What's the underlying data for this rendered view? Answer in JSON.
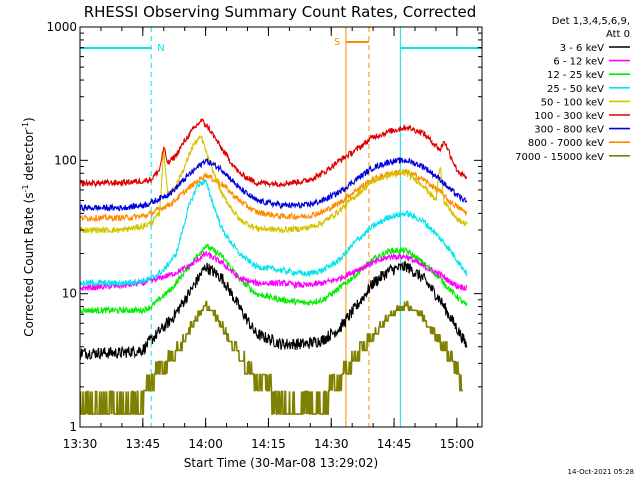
{
  "chart_data": {
    "type": "line",
    "title": "RHESSI Observing Summary Count Rates, Corrected",
    "xlabel": "Start Time (30-Mar-08 13:29:02)",
    "ylabel_main": "Corrected Count Rate (s",
    "ylabel_sup1": "-1",
    "ylabel_mid": " detector",
    "ylabel_sup2": "-1",
    "ylabel_end": ")",
    "x_unit": "minutes after 13:30",
    "xlim": [
      0,
      96
    ],
    "ylim": [
      1,
      1000
    ],
    "y_scale": "log",
    "x_ticks": [
      {
        "x": 0,
        "label": "13:30"
      },
      {
        "x": 15,
        "label": "13:45"
      },
      {
        "x": 30,
        "label": "14:00"
      },
      {
        "x": 45,
        "label": "14:15"
      },
      {
        "x": 60,
        "label": "14:30"
      },
      {
        "x": 75,
        "label": "14:45"
      },
      {
        "x": 90,
        "label": "15:00"
      }
    ],
    "y_ticks": [
      {
        "y": 1,
        "label": "1"
      },
      {
        "y": 10,
        "label": "10"
      },
      {
        "y": 100,
        "label": "100"
      },
      {
        "y": 1000,
        "label": "1000"
      }
    ],
    "legend": {
      "position": "right",
      "header_line1": "Det 1,3,4,5,6,9,",
      "header_line2": "Att 0"
    },
    "flags": {
      "night_label": "N",
      "saa_label": "S",
      "night_intervals": [
        [
          0,
          17
        ],
        [
          76.5,
          96
        ]
      ],
      "saa_interval": [
        63.5,
        69
      ],
      "night_color": "#00e5ee",
      "saa_color": "#ff8c00"
    },
    "footer_date": "14-Oct-2021 05:28",
    "series": [
      {
        "name": "3 - 6 keV",
        "color": "#000000",
        "x": [
          0,
          10,
          15,
          17,
          22,
          26,
          30,
          34,
          38,
          42,
          48,
          54,
          58,
          62,
          66,
          70,
          74,
          78,
          82,
          86,
          88,
          90,
          92.5
        ],
        "y": [
          3.6,
          3.6,
          3.8,
          4.5,
          6.5,
          10,
          16,
          13,
          8,
          5,
          4.2,
          4.2,
          4.5,
          5.5,
          8,
          12,
          15,
          16,
          13,
          9,
          7,
          5.5,
          4
        ]
      },
      {
        "name": "6 - 12 keV",
        "color": "#ff00ff",
        "x": [
          0,
          10,
          15,
          17,
          22,
          26,
          30,
          34,
          38,
          42,
          48,
          54,
          58,
          62,
          66,
          70,
          74,
          78,
          82,
          86,
          88,
          90,
          92.5
        ],
        "y": [
          11,
          11.5,
          12,
          12.5,
          14,
          16,
          20,
          17,
          13,
          12,
          12,
          11.5,
          12,
          13,
          15,
          17,
          19,
          19,
          16,
          14,
          12.5,
          11.5,
          11
        ]
      },
      {
        "name": "12 - 25 keV",
        "color": "#00ee00",
        "x": [
          0,
          10,
          15,
          17,
          22,
          26,
          30,
          34,
          38,
          42,
          48,
          54,
          58,
          62,
          66,
          70,
          74,
          78,
          82,
          86,
          88,
          90,
          92.5
        ],
        "y": [
          7.5,
          7.5,
          7.5,
          8,
          11,
          16,
          23,
          19,
          13,
          10,
          9,
          8.5,
          9,
          11,
          14,
          18,
          21,
          21,
          17,
          13,
          11,
          9.5,
          8
        ]
      },
      {
        "name": "25 - 50 keV",
        "color": "#00e5ee",
        "x": [
          0,
          10,
          15,
          17,
          20,
          23,
          26,
          28,
          30,
          32,
          34,
          38,
          42,
          48,
          54,
          58,
          62,
          66,
          70,
          74,
          78,
          82,
          86,
          88,
          90,
          92.5
        ],
        "y": [
          12,
          12,
          12.5,
          13,
          15,
          20,
          45,
          65,
          70,
          45,
          30,
          20,
          16,
          15,
          14,
          15,
          18,
          25,
          32,
          38,
          40,
          35,
          26,
          22,
          18,
          14
        ]
      },
      {
        "name": "50 - 100 keV",
        "color": "#d4c400",
        "x": [
          0,
          10,
          15,
          17,
          19,
          20,
          21,
          23,
          25,
          27,
          29,
          31,
          34,
          38,
          42,
          48,
          54,
          58,
          62,
          66,
          70,
          74,
          78,
          82,
          85,
          86,
          87,
          89,
          90,
          92.5
        ],
        "y": [
          30,
          30,
          32,
          34,
          40,
          120,
          55,
          65,
          90,
          130,
          150,
          95,
          55,
          36,
          31,
          30,
          31,
          34,
          42,
          55,
          70,
          78,
          80,
          65,
          50,
          95,
          48,
          40,
          36,
          33
        ]
      },
      {
        "name": "100 - 300 keV",
        "color": "#dd0000",
        "x": [
          0,
          10,
          15,
          17,
          19,
          20,
          21,
          23,
          25,
          27,
          29,
          31,
          34,
          38,
          42,
          48,
          54,
          58,
          62,
          66,
          70,
          74,
          78,
          82,
          86,
          87,
          89,
          90,
          92.5
        ],
        "y": [
          67,
          68,
          70,
          72,
          85,
          125,
          95,
          110,
          140,
          170,
          200,
          170,
          120,
          80,
          68,
          67,
          70,
          80,
          100,
          120,
          150,
          165,
          178,
          160,
          120,
          140,
          100,
          85,
          72
        ]
      },
      {
        "name": "300 - 800 keV",
        "color": "#0000dd",
        "x": [
          0,
          10,
          15,
          17,
          22,
          26,
          30,
          34,
          38,
          42,
          48,
          54,
          58,
          62,
          66,
          70,
          74,
          78,
          82,
          86,
          88,
          90,
          92.5
        ],
        "y": [
          44,
          44,
          46,
          48,
          58,
          78,
          100,
          85,
          62,
          50,
          46,
          46,
          50,
          58,
          72,
          88,
          98,
          100,
          90,
          72,
          62,
          55,
          48
        ]
      },
      {
        "name": "800 - 7000 keV",
        "color": "#ff8c00",
        "x": [
          0,
          10,
          15,
          17,
          22,
          26,
          30,
          34,
          38,
          42,
          48,
          54,
          58,
          62,
          66,
          70,
          74,
          78,
          82,
          86,
          88,
          90,
          92.5
        ],
        "y": [
          37,
          37,
          38,
          40,
          48,
          62,
          78,
          66,
          50,
          41,
          38,
          38,
          41,
          48,
          60,
          72,
          80,
          82,
          72,
          58,
          50,
          45,
          40
        ]
      },
      {
        "name": "7000 - 15000 keV",
        "color": "#808000",
        "x": [
          0,
          10,
          15,
          16.5,
          20,
          24,
          27,
          30,
          33,
          36,
          40,
          44,
          48,
          56,
          60,
          63,
          66,
          70,
          74,
          78,
          82,
          85,
          88,
          90,
          91.5
        ],
        "y": [
          1.5,
          1.5,
          1.5,
          2.0,
          2.6,
          3.8,
          5.8,
          8.0,
          6.2,
          4.2,
          2.6,
          1.7,
          1.4,
          1.4,
          1.6,
          2.3,
          3.2,
          4.6,
          6.8,
          8.0,
          6.5,
          4.5,
          3.3,
          2.4,
          1.8
        ]
      }
    ]
  }
}
